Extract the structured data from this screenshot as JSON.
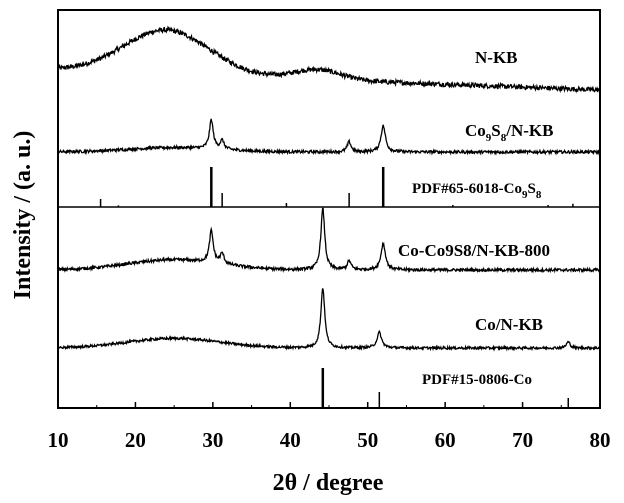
{
  "chart_data": {
    "type": "line",
    "xlabel": "2θ / degree",
    "ylabel": "Intensity / (a. u.)",
    "xlim": [
      10,
      80
    ],
    "x_ticks": [
      "10",
      "20",
      "30",
      "40",
      "50",
      "60",
      "70",
      "80"
    ],
    "grid": false,
    "series": [
      {
        "name": "N-KB",
        "baseline": 0.0,
        "noise": 0.012,
        "features": [
          {
            "kind": "hump",
            "center": 24,
            "width": 5.5,
            "height": 0.22
          },
          {
            "kind": "hump",
            "center": 43.5,
            "width": 3.0,
            "height": 0.05
          },
          {
            "kind": "slope",
            "start": 10,
            "end": 80,
            "from": 0.05,
            "to": -0.05
          }
        ]
      },
      {
        "name": "Co9S8/N-KB",
        "baseline": 0.0,
        "noise": 0.01,
        "features": [
          {
            "kind": "hump",
            "center": 25,
            "width": 6,
            "height": 0.03
          },
          {
            "kind": "peak",
            "center": 29.8,
            "width": 0.3,
            "height": 0.2
          },
          {
            "kind": "peak",
            "center": 31.2,
            "width": 0.3,
            "height": 0.06
          },
          {
            "kind": "peak",
            "center": 47.6,
            "width": 0.3,
            "height": 0.07
          },
          {
            "kind": "peak",
            "center": 52.0,
            "width": 0.35,
            "height": 0.18
          }
        ]
      },
      {
        "name": "Co-Co9S8/N-KB-800",
        "baseline": 0.0,
        "noise": 0.01,
        "features": [
          {
            "kind": "hump",
            "center": 25,
            "width": 6,
            "height": 0.07
          },
          {
            "kind": "peak",
            "center": 29.8,
            "width": 0.3,
            "height": 0.22
          },
          {
            "kind": "peak",
            "center": 31.2,
            "width": 0.3,
            "height": 0.07
          },
          {
            "kind": "peak",
            "center": 44.2,
            "width": 0.3,
            "height": 0.42
          },
          {
            "kind": "peak",
            "center": 47.6,
            "width": 0.3,
            "height": 0.06
          },
          {
            "kind": "peak",
            "center": 52.0,
            "width": 0.35,
            "height": 0.18
          }
        ]
      },
      {
        "name": "Co/N-KB",
        "baseline": 0.0,
        "noise": 0.01,
        "features": [
          {
            "kind": "hump",
            "center": 25,
            "width": 6,
            "height": 0.08
          },
          {
            "kind": "peak",
            "center": 44.2,
            "width": 0.3,
            "height": 0.5
          },
          {
            "kind": "peak",
            "center": 51.5,
            "width": 0.35,
            "height": 0.13
          },
          {
            "kind": "peak",
            "center": 75.9,
            "width": 0.3,
            "height": 0.05
          }
        ]
      }
    ],
    "references": [
      {
        "name": "PDF#65-6018-Co9S8",
        "lines": [
          {
            "x": 15.5,
            "intensity": 0.2
          },
          {
            "x": 17.8,
            "intensity": 0.04
          },
          {
            "x": 29.8,
            "intensity": 1.0
          },
          {
            "x": 31.2,
            "intensity": 0.35
          },
          {
            "x": 39.5,
            "intensity": 0.1
          },
          {
            "x": 47.6,
            "intensity": 0.35
          },
          {
            "x": 52.0,
            "intensity": 1.0
          },
          {
            "x": 61.0,
            "intensity": 0.05
          },
          {
            "x": 73.3,
            "intensity": 0.05
          },
          {
            "x": 76.5,
            "intensity": 0.08
          }
        ]
      },
      {
        "name": "PDF#15-0806-Co",
        "lines": [
          {
            "x": 44.2,
            "intensity": 1.0
          },
          {
            "x": 51.5,
            "intensity": 0.4
          },
          {
            "x": 75.9,
            "intensity": 0.25
          }
        ]
      }
    ]
  }
}
